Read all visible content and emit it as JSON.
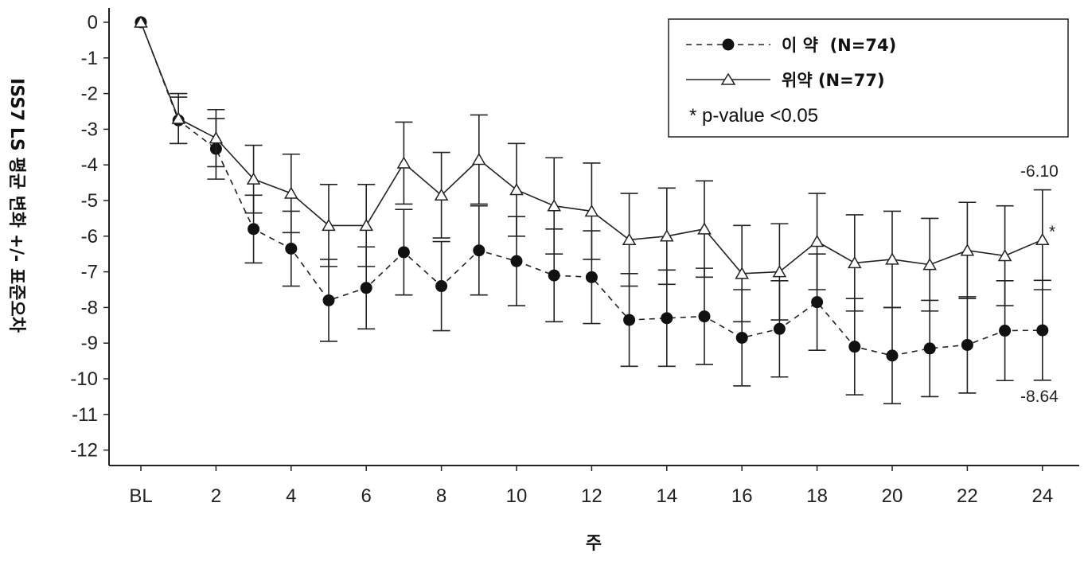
{
  "chart_data": {
    "type": "line",
    "title": "",
    "xlabel": "주",
    "ylabel": "ISS7 LS 평균 변화 +/- 표준오차",
    "x": [
      0,
      1,
      2,
      3,
      4,
      5,
      6,
      7,
      8,
      9,
      10,
      11,
      12,
      13,
      14,
      15,
      16,
      17,
      18,
      19,
      20,
      21,
      22,
      23,
      24
    ],
    "x_tick_labels": [
      "BL",
      "2",
      "4",
      "6",
      "8",
      "10",
      "12",
      "14",
      "16",
      "18",
      "20",
      "22",
      "24"
    ],
    "y_ticks": [
      "0",
      "-1",
      "-2",
      "-3",
      "-4",
      "-5",
      "-6",
      "-7",
      "-8",
      "-9",
      "-10",
      "-11",
      "-12"
    ],
    "ylim": [
      -12.5,
      0.3
    ],
    "xlim": [
      -0.8,
      24.9
    ],
    "grid": false,
    "legend_position": "top-right",
    "series": [
      {
        "name": "이 약  (N=74)",
        "marker": "filled-circle",
        "line_style": "dashed",
        "values": [
          0,
          -2.75,
          -3.55,
          -5.8,
          -6.35,
          -7.8,
          -7.45,
          -6.45,
          -7.4,
          -6.4,
          -6.7,
          -7.1,
          -7.15,
          -8.35,
          -8.3,
          -8.25,
          -8.85,
          -8.6,
          -7.85,
          -9.1,
          -9.35,
          -9.15,
          -9.05,
          -8.65,
          -8.64
        ],
        "errors": [
          0,
          0.65,
          0.85,
          0.95,
          1.05,
          1.15,
          1.15,
          1.2,
          1.25,
          1.25,
          1.25,
          1.3,
          1.3,
          1.3,
          1.35,
          1.35,
          1.35,
          1.35,
          1.35,
          1.35,
          1.35,
          1.35,
          1.35,
          1.4,
          1.4
        ]
      },
      {
        "name": "위약 (N=77)",
        "marker": "open-triangle",
        "line_style": "solid",
        "values": [
          0,
          -2.7,
          -3.25,
          -4.4,
          -4.8,
          -5.7,
          -5.7,
          -3.95,
          -4.85,
          -3.85,
          -4.7,
          -5.15,
          -5.3,
          -6.1,
          -6.0,
          -5.8,
          -7.05,
          -7.0,
          -6.15,
          -6.75,
          -6.65,
          -6.8,
          -6.4,
          -6.55,
          -6.1
        ],
        "errors": [
          0,
          0.7,
          0.8,
          0.95,
          1.1,
          1.15,
          1.15,
          1.15,
          1.2,
          1.25,
          1.3,
          1.35,
          1.35,
          1.3,
          1.35,
          1.35,
          1.35,
          1.35,
          1.35,
          1.35,
          1.35,
          1.3,
          1.35,
          1.4,
          1.4
        ]
      }
    ],
    "annotations": {
      "placebo_end_value": "-6.10",
      "drug_end_value": "-8.64",
      "significance_marker": "*",
      "legend_note": "* p-value <0.05"
    }
  }
}
